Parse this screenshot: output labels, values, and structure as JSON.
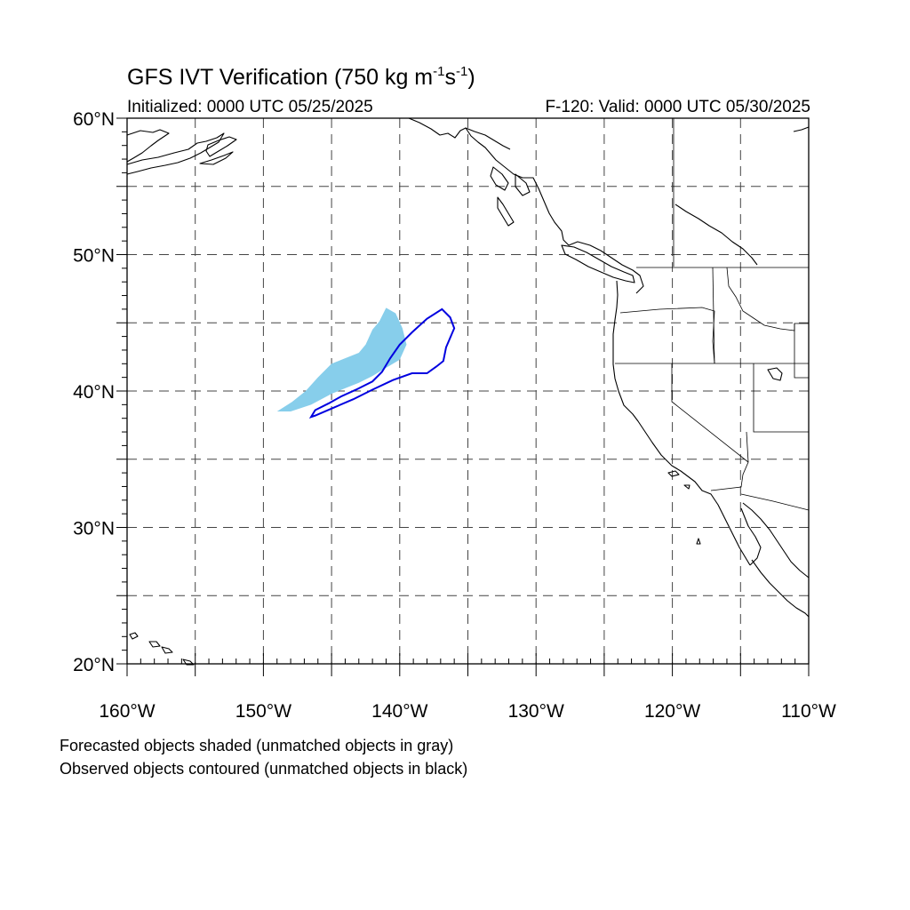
{
  "title": {
    "main": "GFS IVT Verification",
    "unit_open": "(750 kg m",
    "unit_exp1": "-1",
    "unit_mid": "s",
    "unit_exp2": "-1",
    "unit_close": ")"
  },
  "subtitle": {
    "initialized": "Initialized: 0000 UTC 05/25/2025",
    "valid": "F-120: Valid: 0000 UTC 05/30/2025"
  },
  "map": {
    "lon_range": [
      -160,
      -110
    ],
    "lat_range": [
      20,
      60
    ],
    "grid": "dashed",
    "grid_lons": [
      -155,
      -150,
      -145,
      -140,
      -135,
      -130,
      -125,
      -120,
      -115
    ],
    "grid_lats": [
      25,
      30,
      35,
      40,
      45,
      50,
      55
    ],
    "lat_labels": [
      {
        "lat": 60,
        "text": "60°N"
      },
      {
        "lat": 50,
        "text": "50°N"
      },
      {
        "lat": 40,
        "text": "40°N"
      },
      {
        "lat": 30,
        "text": "30°N"
      },
      {
        "lat": 20,
        "text": "20°N"
      }
    ],
    "lon_labels": [
      {
        "lon": -160,
        "text": "160°W"
      },
      {
        "lon": -150,
        "text": "150°W"
      },
      {
        "lon": -140,
        "text": "140°W"
      },
      {
        "lon": -130,
        "text": "130°W"
      },
      {
        "lon": -120,
        "text": "120°W"
      },
      {
        "lon": -110,
        "text": "110°W"
      }
    ],
    "forecast_color": "#87ceeb",
    "observed_color": "#0000e0",
    "forecast_object": [
      [
        -149.0,
        38.5
      ],
      [
        -147.9,
        39.2
      ],
      [
        -146.9,
        40.0
      ],
      [
        -146.0,
        41.0
      ],
      [
        -145.0,
        42.0
      ],
      [
        -144.0,
        42.4
      ],
      [
        -143.0,
        42.8
      ],
      [
        -142.5,
        43.4
      ],
      [
        -142.0,
        44.5
      ],
      [
        -141.5,
        45.1
      ],
      [
        -141.0,
        46.1
      ],
      [
        -140.3,
        45.7
      ],
      [
        -139.8,
        44.6
      ],
      [
        -139.5,
        43.4
      ],
      [
        -140.0,
        42.3
      ],
      [
        -141.0,
        41.7
      ],
      [
        -142.0,
        41.1
      ],
      [
        -143.0,
        40.6
      ],
      [
        -144.0,
        40.2
      ],
      [
        -145.0,
        39.8
      ],
      [
        -146.5,
        39.0
      ],
      [
        -148.0,
        38.5
      ]
    ],
    "observed_object": [
      [
        -146.5,
        38.1
      ],
      [
        -146.2,
        38.6
      ],
      [
        -145.2,
        39.1
      ],
      [
        -144.3,
        39.6
      ],
      [
        -143.2,
        40.1
      ],
      [
        -142.0,
        40.7
      ],
      [
        -141.3,
        41.4
      ],
      [
        -140.7,
        42.4
      ],
      [
        -140.0,
        43.4
      ],
      [
        -139.1,
        44.3
      ],
      [
        -138.0,
        45.3
      ],
      [
        -136.9,
        46.0
      ],
      [
        -136.3,
        45.4
      ],
      [
        -136.0,
        44.6
      ],
      [
        -136.6,
        43.2
      ],
      [
        -136.8,
        42.2
      ],
      [
        -137.3,
        41.8
      ],
      [
        -138.0,
        41.3
      ],
      [
        -139.1,
        41.3
      ],
      [
        -140.5,
        40.8
      ],
      [
        -142.0,
        40.1
      ],
      [
        -143.4,
        39.4
      ],
      [
        -144.8,
        38.8
      ],
      [
        -146.2,
        38.2
      ]
    ]
  },
  "notes": {
    "forecast": "Forecasted objects shaded (unmatched objects in gray)",
    "observed": "Observed objects contoured (unmatched objects in black)"
  }
}
